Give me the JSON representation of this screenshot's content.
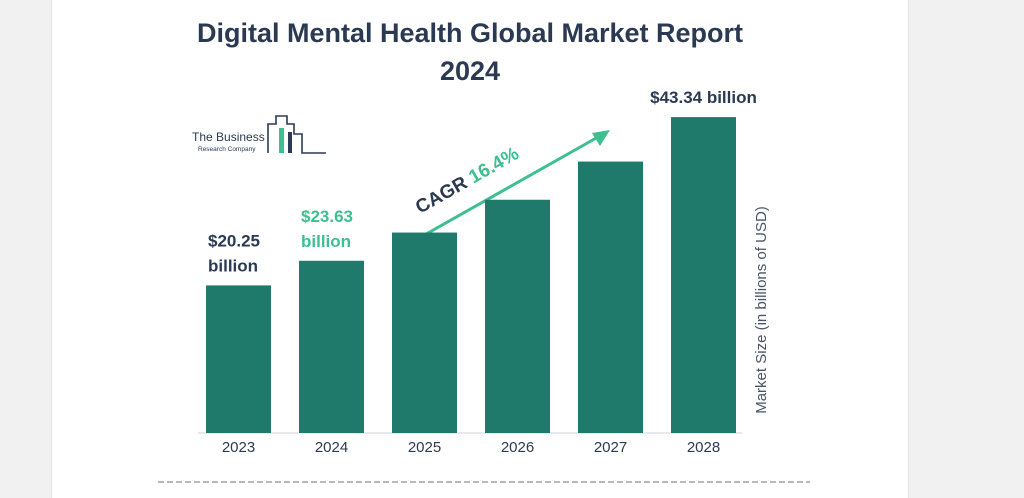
{
  "chart_data": {
    "type": "bar",
    "title": "Digital Mental Health  Global Market Report\n2024",
    "categories": [
      "2023",
      "2024",
      "2025",
      "2026",
      "2027",
      "2028"
    ],
    "values": [
      20.25,
      23.63,
      27.5,
      32.0,
      37.24,
      43.34
    ],
    "ylabel": "Market Size (in billions of USD)",
    "ylim": [
      0,
      45
    ],
    "bar_color": "#1f7a6b",
    "data_labels": [
      {
        "index": 0,
        "text": "$20.25\nbillion",
        "color": "#2b3a52"
      },
      {
        "index": 1,
        "text": "$23.63\nbillion",
        "color": "#3dbf8f"
      },
      {
        "index": 5,
        "text": "$43.34 billion",
        "color": "#2b3a52"
      }
    ],
    "annotation": {
      "prefix": "CAGR ",
      "value": "16.4%",
      "prefix_color": "#2b3a52",
      "value_color": "#3dbf8f"
    },
    "logo": {
      "line1": "The Business",
      "line2": "Research Company"
    },
    "grid": false
  }
}
